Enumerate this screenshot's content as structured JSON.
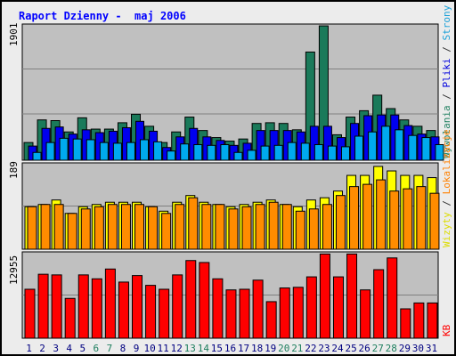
{
  "title": "Raport Dzienny -  maj 2006",
  "y_labels": {
    "top": "1901",
    "middle": "189",
    "bottom": "12955"
  },
  "right_legends": {
    "top": [
      {
        "text": "Wywołania",
        "color": "#1f7f5f"
      },
      {
        "text": " / ",
        "color": "#333333"
      },
      {
        "text": "Pliki",
        "color": "#0000dd"
      },
      {
        "text": " / ",
        "color": "#333333"
      },
      {
        "text": "Strony",
        "color": "#1aa0d8"
      }
    ],
    "middle": [
      {
        "text": "Wizyty",
        "color": "#dddd00"
      },
      {
        "text": " / ",
        "color": "#333333"
      },
      {
        "text": "Lokalizacje",
        "color": "#ff8000"
      }
    ],
    "bottom": [
      {
        "text": "KB",
        "color": "#ff0000"
      }
    ]
  },
  "colors": {
    "hits": "#1a7a5a",
    "files": "#0000ee",
    "pages": "#00aaee",
    "visits": "#ffff00",
    "sites": "#ff8c00",
    "kb": "#ff0000",
    "weekend_label": "#1f7f5f",
    "weekday_label": "#000080"
  },
  "chart_data": {
    "type": "bar",
    "categories": [
      "1",
      "2",
      "3",
      "4",
      "5",
      "6",
      "7",
      "8",
      "9",
      "10",
      "11",
      "12",
      "13",
      "14",
      "15",
      "16",
      "17",
      "18",
      "19",
      "20",
      "21",
      "22",
      "23",
      "24",
      "25",
      "26",
      "27",
      "28",
      "29",
      "30",
      "31"
    ],
    "weekend_days": [
      "6",
      "7",
      "13",
      "14",
      "20",
      "21",
      "27",
      "28"
    ],
    "panels": [
      {
        "label": "1901",
        "ylim": [
          0,
          1901
        ],
        "series": [
          {
            "name": "Wywołania",
            "values": [
              250,
              570,
              560,
              400,
              600,
              440,
              440,
              530,
              650,
              480,
              250,
              400,
              610,
              420,
              320,
              270,
              300,
              520,
              530,
              520,
              430,
              1530,
              1900,
              360,
              610,
              700,
              920,
              730,
              570,
              480,
              420
            ]
          },
          {
            "name": "Pliki",
            "values": [
              200,
              450,
              470,
              370,
              430,
              390,
              410,
              460,
              550,
              410,
              180,
              330,
              450,
              330,
              280,
              210,
              240,
              420,
              420,
              420,
              400,
              480,
              480,
              320,
              520,
              630,
              640,
              640,
              490,
              370,
              330
            ]
          },
          {
            "name": "Strony",
            "values": [
              110,
              250,
              310,
              300,
              290,
              250,
              240,
              250,
              290,
              260,
              130,
              230,
              220,
              210,
              220,
              110,
              140,
              200,
              210,
              250,
              240,
              220,
              200,
              190,
              340,
              400,
              480,
              430,
              350,
              320,
              220
            ]
          }
        ]
      },
      {
        "label": "189",
        "ylim": [
          0,
          189
        ],
        "series": [
          {
            "name": "Wizyty",
            "values": [
              95,
              100,
              110,
              80,
              95,
              100,
              105,
              105,
              105,
              95,
              85,
              105,
              120,
              105,
              100,
              95,
              100,
              105,
              110,
              100,
              95,
              110,
              115,
              130,
              165,
              165,
              185,
              175,
              165,
              165,
              160
            ]
          },
          {
            "name": "Lokalizacje",
            "values": [
              95,
              100,
              100,
              80,
              90,
              95,
              100,
              100,
              100,
              95,
              80,
              100,
              115,
              100,
              100,
              90,
              95,
              100,
              105,
              100,
              85,
              90,
              100,
              120,
              140,
              145,
              155,
              130,
              135,
              140,
              125
            ]
          }
        ]
      },
      {
        "label": "12955",
        "ylim": [
          0,
          12955
        ],
        "series": [
          {
            "name": "KB",
            "values": [
              7500,
              9800,
              9700,
              6100,
              9700,
              9100,
              10600,
              8600,
              9600,
              8100,
              7500,
              9700,
              11900,
              11600,
              9100,
              7400,
              7500,
              8900,
              5600,
              7700,
              7800,
              9400,
              12900,
              9400,
              12900,
              7400,
              10500,
              12300,
              4500,
              5400,
              5400
            ]
          }
        ]
      }
    ]
  }
}
